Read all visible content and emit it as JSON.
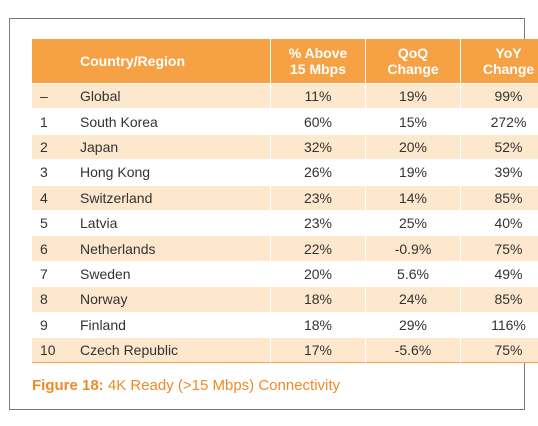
{
  "table": {
    "headers": {
      "country": "Country/Region",
      "above_line1": "% Above",
      "above_line2": "15 Mbps",
      "qoq_line1": "QoQ",
      "qoq_line2": "Change",
      "yoy_line1": "YoY",
      "yoy_line2": "Change"
    },
    "rows": [
      {
        "rank": "–",
        "country": "Global",
        "above": "11%",
        "qoq": "19%",
        "yoy": "99%"
      },
      {
        "rank": "1",
        "country": "South Korea",
        "above": "60%",
        "qoq": "15%",
        "yoy": "272%"
      },
      {
        "rank": "2",
        "country": "Japan",
        "above": "32%",
        "qoq": "20%",
        "yoy": "52%"
      },
      {
        "rank": "3",
        "country": "Hong Kong",
        "above": "26%",
        "qoq": "19%",
        "yoy": "39%"
      },
      {
        "rank": "4",
        "country": "Switzerland",
        "above": "23%",
        "qoq": "14%",
        "yoy": "85%"
      },
      {
        "rank": "5",
        "country": "Latvia",
        "above": "23%",
        "qoq": "25%",
        "yoy": "40%"
      },
      {
        "rank": "6",
        "country": "Netherlands",
        "above": "22%",
        "qoq": "-0.9%",
        "yoy": "75%"
      },
      {
        "rank": "7",
        "country": "Sweden",
        "above": "20%",
        "qoq": "5.6%",
        "yoy": "49%"
      },
      {
        "rank": "8",
        "country": "Norway",
        "above": "18%",
        "qoq": "24%",
        "yoy": "85%"
      },
      {
        "rank": "9",
        "country": "Finland",
        "above": "18%",
        "qoq": "29%",
        "yoy": "116%"
      },
      {
        "rank": "10",
        "country": "Czech Republic",
        "above": "17%",
        "qoq": "-5.6%",
        "yoy": "75%"
      }
    ]
  },
  "caption": {
    "label": "Figure 18:",
    "text": " 4K Ready (>15 Mbps) Connectivity"
  },
  "colors": {
    "header": "#f5a144",
    "shaded_row": "#fde7cd",
    "caption": "#f08a24",
    "border": "#7a7a7a"
  }
}
